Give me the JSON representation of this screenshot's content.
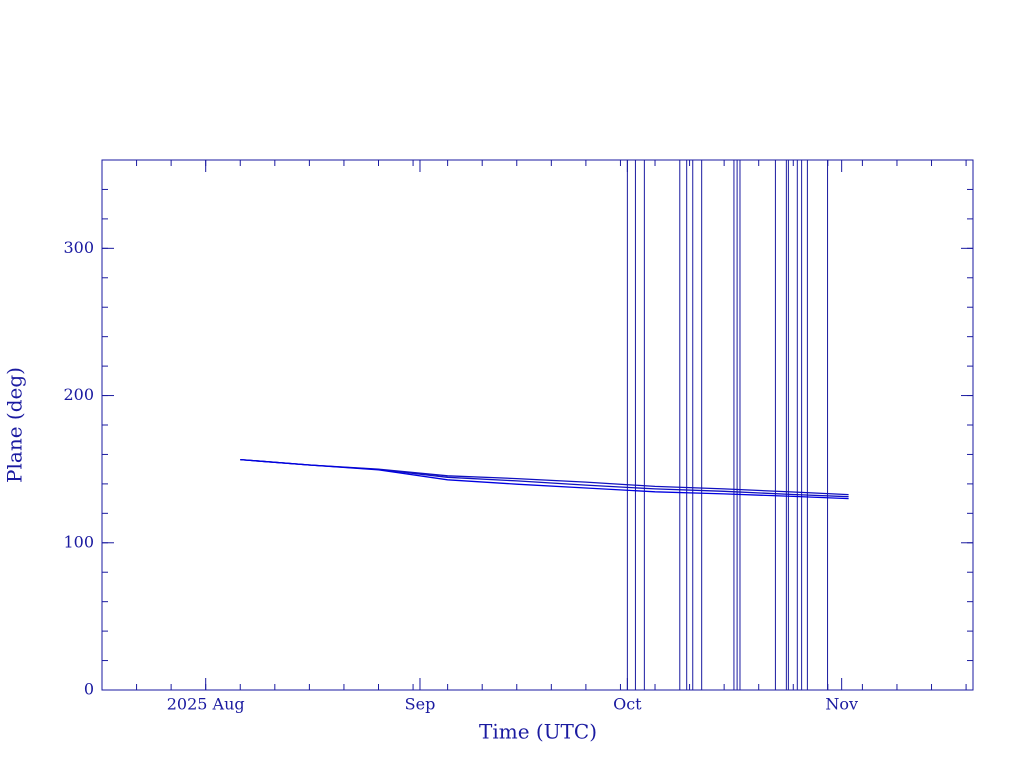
{
  "chart_data": {
    "type": "line",
    "x_label": "Time (UTC)",
    "y_label": "Plane (deg)",
    "xlim": [
      "2025-07-17",
      "2025-11-20"
    ],
    "xticks": [
      {
        "value": "2025-08-01",
        "label": "2025 Aug"
      },
      {
        "value": "2025-09-01",
        "label": "Sep"
      },
      {
        "value": "2025-10-01",
        "label": "Oct"
      },
      {
        "value": "2025-11-01",
        "label": "Nov"
      }
    ],
    "ylim": [
      0,
      360
    ],
    "yticks": [
      0,
      100,
      200,
      300
    ],
    "x": [
      "2025-08-06",
      "2025-08-16",
      "2025-08-26",
      "2025-09-05",
      "2025-09-15",
      "2025-09-25",
      "2025-10-05",
      "2025-10-15",
      "2025-10-25",
      "2025-11-02"
    ],
    "series": [
      {
        "color": "#1010c0",
        "values": [
          156.5,
          152.8,
          150.0,
          145.5,
          143.6,
          141.2,
          138.3,
          136.6,
          134.5,
          132.7
        ]
      },
      {
        "color": "#1010c0",
        "values": [
          156.5,
          152.8,
          149.8,
          144.5,
          142.0,
          139.2,
          136.6,
          135.0,
          132.8,
          131.3
        ]
      },
      {
        "color": "#0000e0",
        "values": [
          156.5,
          152.8,
          149.5,
          142.8,
          139.8,
          137.2,
          134.6,
          133.2,
          131.5,
          130.0
        ]
      }
    ],
    "events": [
      "2025-10-01T00:00",
      "2025-10-02T04:00",
      "2025-10-03T11:00",
      "2025-10-08T14:00",
      "2025-10-09T14:00",
      "2025-10-10T11:00",
      "2025-10-11T18:00",
      "2025-10-16T10:00",
      "2025-10-16T21:00",
      "2025-10-17T07:00",
      "2025-10-22T10:00",
      "2025-10-24T00:00",
      "2025-10-24T07:00",
      "2025-10-25T14:00",
      "2025-10-26T05:00",
      "2025-10-27T01:00",
      "2025-10-29T23:00"
    ],
    "event_color": "#1a1aa0",
    "axis_color": "#1a1aa0"
  }
}
